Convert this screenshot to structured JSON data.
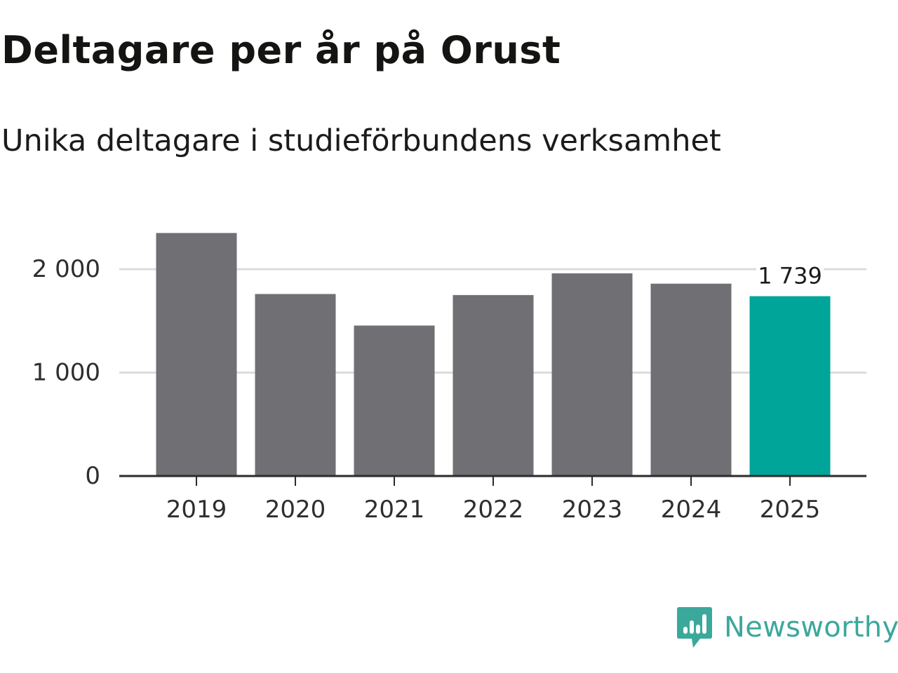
{
  "chart_data": {
    "type": "bar",
    "title": "Deltagare per år på Orust",
    "subtitle": "Unika deltagare i studieförbundens verksamhet",
    "xlabel": "",
    "ylabel": "",
    "categories": [
      "2019",
      "2020",
      "2021",
      "2022",
      "2023",
      "2024",
      "2025"
    ],
    "values": [
      2350,
      1760,
      1455,
      1750,
      1960,
      1860,
      1739
    ],
    "ylim": [
      0,
      2500
    ],
    "yticks": [
      0,
      1000,
      2000
    ],
    "ytick_labels": [
      "0",
      "1 000",
      "2 000"
    ],
    "grid": true,
    "highlight_index": 6,
    "annotations": [
      {
        "category": "2025",
        "text": "1 739"
      }
    ],
    "colors": {
      "bar": "#706f74",
      "highlight": "#00a59a",
      "grid": "#dcdcdc",
      "axis": "#2b2b2b"
    }
  },
  "brand": {
    "name": "Newsworthy",
    "icon": "chart-bubble-icon",
    "color": "#3ba89c"
  }
}
